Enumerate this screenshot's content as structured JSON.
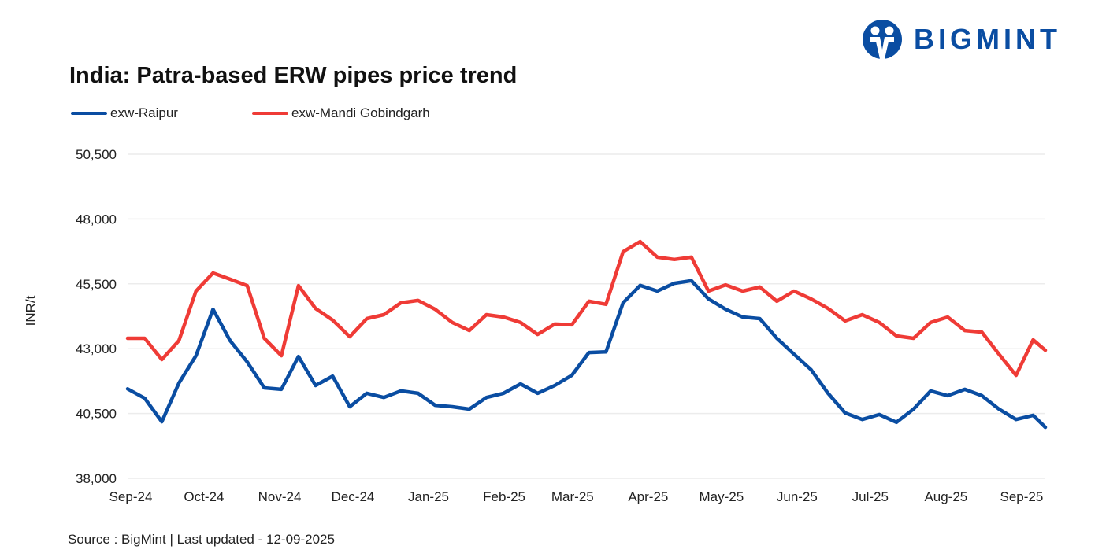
{
  "brand": {
    "logo_text": "BIGMINT",
    "color": "#0A4DA2"
  },
  "chart_data": {
    "type": "line",
    "title": "India: Patra-based ERW pipes price trend",
    "ylabel": "INR/t",
    "xlabel": "",
    "ylim": [
      38000,
      50500
    ],
    "yticks": [
      38000,
      40500,
      43000,
      45500,
      48000,
      50500
    ],
    "ytick_labels": [
      "38,000",
      "40,500",
      "43,000",
      "45,500",
      "48,000",
      "50,500"
    ],
    "xticks": [
      "2024-09-01",
      "2024-10-01",
      "2024-11-01",
      "2024-12-01",
      "2025-01-01",
      "2025-02-01",
      "2025-03-01",
      "2025-04-01",
      "2025-05-01",
      "2025-06-01",
      "2025-07-01",
      "2025-08-01",
      "2025-09-01"
    ],
    "xtick_labels": [
      "Sep-24",
      "Oct-24",
      "Nov-24",
      "Dec-24",
      "Jan-25",
      "Feb-25",
      "Mar-25",
      "Apr-25",
      "May-25",
      "Jun-25",
      "Jul-25",
      "Aug-25",
      "Sep-25"
    ],
    "xlim": [
      "2024-09-01",
      "2025-09-12"
    ],
    "grid": "horizontal",
    "legend_position": "top-left",
    "x": [
      "2024-09-01",
      "2024-09-08",
      "2024-09-15",
      "2024-09-22",
      "2024-09-29",
      "2024-10-06",
      "2024-10-13",
      "2024-10-20",
      "2024-10-27",
      "2024-11-03",
      "2024-11-10",
      "2024-11-17",
      "2024-11-24",
      "2024-12-01",
      "2024-12-08",
      "2024-12-15",
      "2024-12-22",
      "2024-12-29",
      "2025-01-05",
      "2025-01-12",
      "2025-01-19",
      "2025-01-26",
      "2025-02-02",
      "2025-02-09",
      "2025-02-16",
      "2025-02-23",
      "2025-03-02",
      "2025-03-09",
      "2025-03-16",
      "2025-03-23",
      "2025-03-30",
      "2025-04-06",
      "2025-04-13",
      "2025-04-20",
      "2025-04-27",
      "2025-05-04",
      "2025-05-11",
      "2025-05-18",
      "2025-05-25",
      "2025-06-01",
      "2025-06-08",
      "2025-06-15",
      "2025-06-22",
      "2025-06-29",
      "2025-07-06",
      "2025-07-13",
      "2025-07-20",
      "2025-07-27",
      "2025-08-03",
      "2025-08-10",
      "2025-08-17",
      "2025-08-24",
      "2025-08-31",
      "2025-09-07",
      "2025-09-12"
    ],
    "series": [
      {
        "name": "exw-Raipur",
        "color": "#0A4DA2",
        "values": [
          41450,
          41090,
          40180,
          41670,
          42730,
          44520,
          43310,
          42490,
          41490,
          41430,
          42700,
          41580,
          41940,
          40760,
          41280,
          41120,
          41370,
          41280,
          40820,
          40760,
          40670,
          41120,
          41280,
          41640,
          41280,
          41580,
          41970,
          42850,
          42880,
          44770,
          45440,
          45220,
          45520,
          45620,
          44920,
          44520,
          44220,
          44160,
          43400,
          42790,
          42190,
          41280,
          40520,
          40270,
          40460,
          40160,
          40670,
          41370,
          41190,
          41430,
          41190,
          40670,
          40270,
          40430,
          39970
        ]
      },
      {
        "name": "exw-Mandi Gobindgarh",
        "color": "#EF3B36",
        "values": [
          43400,
          43400,
          42580,
          43310,
          45220,
          45920,
          45680,
          45430,
          43400,
          42730,
          45430,
          44550,
          44100,
          43460,
          44160,
          44310,
          44770,
          44860,
          44520,
          44010,
          43700,
          44310,
          44220,
          44010,
          43550,
          43950,
          43920,
          44830,
          44710,
          46740,
          47130,
          46530,
          46440,
          46530,
          45220,
          45460,
          45220,
          45380,
          44830,
          45220,
          44920,
          44550,
          44070,
          44310,
          44010,
          43490,
          43400,
          44010,
          44220,
          43700,
          43640,
          42790,
          41970,
          43340,
          42940
        ]
      }
    ]
  },
  "footer": {
    "source": "Source : BigMint | Last updated - 12-09-2025"
  }
}
